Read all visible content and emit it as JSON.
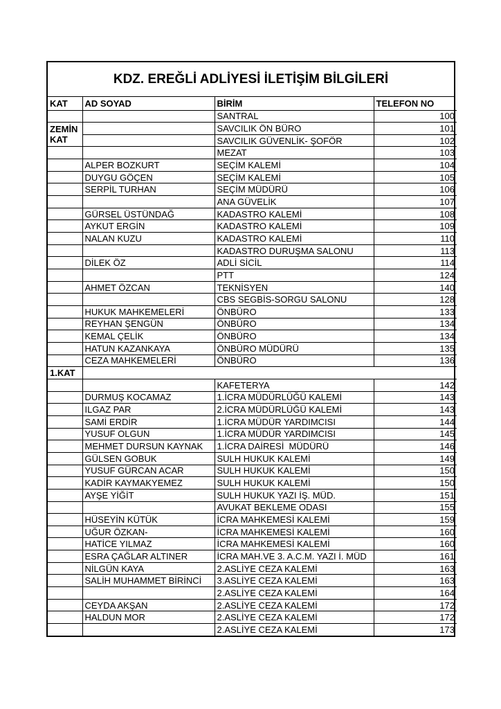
{
  "title": "KDZ. EREĞLİ ADLİYESİ İLETİŞİM BİLGİLERİ",
  "table": {
    "headers": [
      "KAT",
      "AD SOYAD",
      "BİRİM",
      "TELEFON NO"
    ],
    "rows": [
      {
        "kat": "",
        "ad_soyad": "",
        "birim": "SANTRAL",
        "telefon": "100"
      },
      {
        "kat": "ZEMİN\nKAT",
        "kat_span": 2,
        "ad_soyad": "",
        "birim": "SAVCILIK ÖN BÜRO",
        "telefon": "101"
      },
      {
        "kat": null,
        "ad_soyad": "",
        "birim": "SAVCILIK GÜVENLİK- ŞOFÖR",
        "telefon": "102"
      },
      {
        "kat": "",
        "ad_soyad": "",
        "birim": "MEZAT",
        "telefon": "103"
      },
      {
        "kat": "",
        "ad_soyad": "ALPER BOZKURT",
        "birim": "SEÇİM KALEMİ",
        "telefon": "104"
      },
      {
        "kat": "",
        "ad_soyad": "DUYGU GÖÇEN",
        "birim": "SEÇİM KALEMİ",
        "telefon": "105"
      },
      {
        "kat": "",
        "ad_soyad": "SERPİL TURHAN",
        "birim": "SEÇİM MÜDÜRÜ",
        "telefon": "106"
      },
      {
        "kat": "",
        "ad_soyad": "",
        "birim": "ANA GÜVELİK",
        "telefon": "107"
      },
      {
        "kat": "",
        "ad_soyad": "GÜRSEL ÜSTÜNDAĞ",
        "birim": "KADASTRO KALEMİ",
        "telefon": "108"
      },
      {
        "kat": "",
        "ad_soyad": "AYKUT ERGİN",
        "birim": "KADASTRO KALEMİ",
        "telefon": "109"
      },
      {
        "kat": "",
        "ad_soyad": "NALAN KUZU",
        "birim": "KADASTRO KALEMİ",
        "telefon": "110"
      },
      {
        "kat": "",
        "ad_soyad": "",
        "birim": "KADASTRO DURUŞMA SALONU",
        "telefon": "113"
      },
      {
        "kat": "",
        "ad_soyad": "DİLEK ÖZ",
        "birim": "ADLİ SİCİL",
        "telefon": "114"
      },
      {
        "kat": "",
        "ad_soyad": "",
        "birim": "PTT",
        "telefon": "124"
      },
      {
        "kat": "",
        "ad_soyad": "AHMET ÖZCAN",
        "birim": "TEKNİSYEN",
        "telefon": "140"
      },
      {
        "kat": "",
        "ad_soyad": "",
        "birim": "CBS SEGBİS-SORGU SALONU",
        "telefon": "128"
      },
      {
        "kat": "",
        "ad_soyad": "HUKUK MAHKEMELERİ",
        "birim": "ÖNBÜRO",
        "telefon": "133"
      },
      {
        "kat": "",
        "ad_soyad": "REYHAN ŞENGÜN",
        "birim": "ÖNBÜRO",
        "telefon": "134"
      },
      {
        "kat": "",
        "ad_soyad": "KEMAL ÇELİK",
        "birim": "ÖNBÜRO",
        "telefon": "134"
      },
      {
        "kat": "",
        "ad_soyad": "HATUN KAZANKAYA",
        "birim": "ÖNBÜRO MÜDÜRÜ",
        "telefon": "135"
      },
      {
        "kat": "",
        "ad_soyad": "CEZA MAHKEMELERİ",
        "birim": "ÖNBÜRO",
        "telefon": "136"
      },
      {
        "section": true,
        "kat": "1.KAT"
      },
      {
        "kat": "",
        "ad_soyad": "",
        "birim": "KAFETERYA",
        "telefon": "142"
      },
      {
        "kat": "",
        "ad_soyad": "DURMUŞ KOCAMAZ",
        "birim": "1.İCRA MÜDÜRLÜĞÜ KALEMİ",
        "telefon": "143"
      },
      {
        "kat": "",
        "ad_soyad": "ILGAZ PAR",
        "birim": "2.İCRA MÜDÜRLÜĞÜ KALEMİ",
        "telefon": "143"
      },
      {
        "kat": "",
        "ad_soyad": "SAMİ ERDİR",
        "birim": "1.İCRA MÜDÜR YARDIMCISI",
        "telefon": "144"
      },
      {
        "kat": "",
        "ad_soyad": "YUSUF OLGUN",
        "birim": "1.İCRA MÜDÜR YARDIMCISI",
        "telefon": "145"
      },
      {
        "kat": "",
        "ad_soyad": "MEHMET DURSUN KAYNAK",
        "birim": "1.İCRA DAİRESİ  MÜDÜRÜ",
        "telefon": "146"
      },
      {
        "kat": "",
        "ad_soyad": "GÜLSEN GOBUK",
        "birim": "SULH HUKUK KALEMİ",
        "telefon": "149"
      },
      {
        "kat": "",
        "ad_soyad": "YUSUF GÜRCAN ACAR",
        "birim": "SULH HUKUK KALEMİ",
        "telefon": "150"
      },
      {
        "kat": "",
        "ad_soyad": "KADİR KAYMAKYEMEZ",
        "birim": "SULH HUKUK KALEMİ",
        "telefon": "150"
      },
      {
        "kat": "",
        "ad_soyad": "AYŞE YİĞİT",
        "birim": "SULH HUKUK YAZI İŞ. MÜD.",
        "telefon": "151"
      },
      {
        "kat": "",
        "ad_soyad": "",
        "birim": "AVUKAT BEKLEME ODASI",
        "telefon": "155"
      },
      {
        "kat": "",
        "ad_soyad": "HÜSEYİN KÜTÜK",
        "birim": "İCRA MAHKEMESİ KALEMİ",
        "telefon": "159"
      },
      {
        "kat": "",
        "ad_soyad": "UĞUR ÖZKAN-",
        "birim": "İCRA MAHKEMESİ KALEMİ",
        "telefon": "160"
      },
      {
        "kat": "",
        "ad_soyad": "HATİCE YILMAZ",
        "birim": "İCRA MAHKEMESİ KALEMİ",
        "telefon": "160"
      },
      {
        "kat": "",
        "ad_soyad": "ESRA ÇAĞLAR ALTINER",
        "birim": "İCRA MAH.VE 3. A.C.M. YAZI İ. MÜD",
        "telefon": "161"
      },
      {
        "kat": "",
        "ad_soyad": "NİLGÜN KAYA",
        "birim": "2.ASLİYE CEZA KALEMİ",
        "telefon": "163"
      },
      {
        "kat": "",
        "ad_soyad": "SALİH MUHAMMET BİRİNCİ",
        "birim": "3.ASLİYE CEZA KALEMİ",
        "telefon": "163"
      },
      {
        "kat": "",
        "ad_soyad": "",
        "birim": "2.ASLİYE CEZA KALEMİ",
        "telefon": "164"
      },
      {
        "kat": "",
        "ad_soyad": "CEYDA AKŞAN",
        "birim": "2.ASLİYE CEZA KALEMİ",
        "telefon": "172"
      },
      {
        "kat": "",
        "ad_soyad": "HALDUN MOR",
        "birim": "2.ASLİYE CEZA KALEMİ",
        "telefon": "172"
      },
      {
        "kat": "",
        "ad_soyad": "",
        "birim": "2.ASLİYE CEZA KALEMİ",
        "telefon": "173"
      }
    ]
  }
}
